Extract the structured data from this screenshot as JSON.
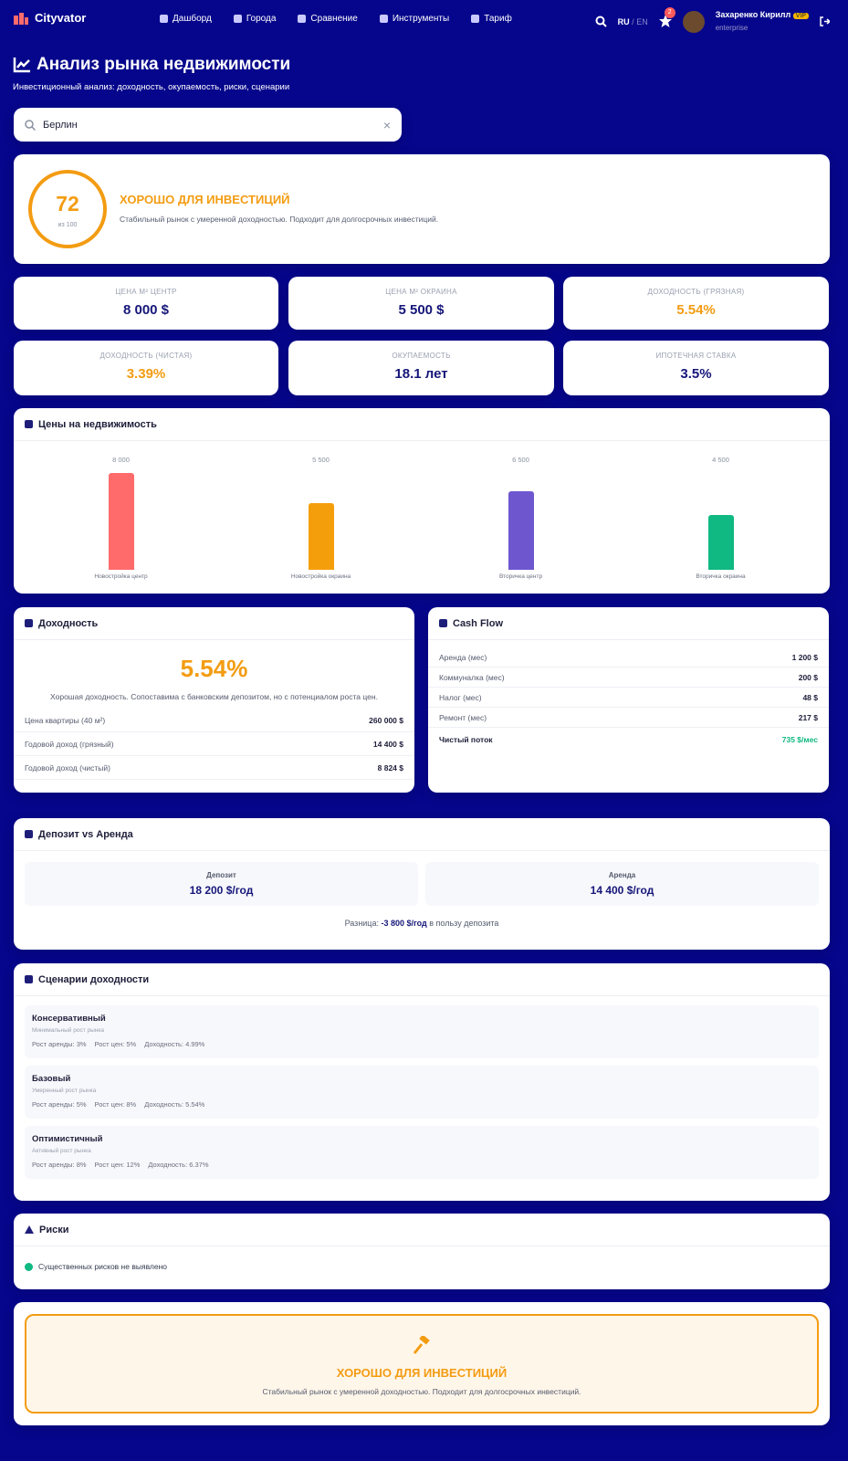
{
  "nav": {
    "brand": "Cityvator",
    "links": [
      "Дашборд",
      "Города",
      "Сравнение",
      "Инструменты",
      "Тариф"
    ],
    "lang_ru": "RU",
    "lang_sep": "/",
    "lang_en": "EN",
    "badge": "2",
    "user_name": "Захаренко Кирилл",
    "user_badge": "VIP",
    "user_plan": "enterprise"
  },
  "header": {
    "title": "Анализ рынка недвижимости",
    "subtitle": "Инвестиционный анализ: доходность, окупаемость, риски, сценарии"
  },
  "search": {
    "value": "Берлин"
  },
  "score": {
    "value": 72,
    "label": "из 100",
    "verdict": "ХОРОШО ДЛЯ ИНВЕСТИЦИЙ",
    "description": "Стабильный рынок с умеренной доходностью. Подходит для долгосрочных инвестиций."
  },
  "metrics": [
    {
      "label": "ЦЕНА М² ЦЕНТР",
      "value": "8 000 $"
    },
    {
      "label": "ЦЕНА М² ОКРАИНА",
      "value": "5 500 $"
    },
    {
      "label": "ДОХОДНОСТЬ (ГРЯЗНАЯ)",
      "value": "5.54%"
    },
    {
      "label": "ДОХОДНОСТЬ (ЧИСТАЯ)",
      "value": "3.39%"
    },
    {
      "label": "ОКУПАЕМОСТЬ",
      "value": "18.1 лет"
    },
    {
      "label": "ИПОТЕЧНАЯ СТАВКА",
      "value": "3.5%"
    }
  ],
  "price_chart": {
    "type": "bar",
    "title": "Цены на недвижимость",
    "categories": [
      "Новостройка центр",
      "Новостройка окраина",
      "Вторичка центр",
      "Вторичка окраина"
    ],
    "values": [
      8000,
      5500,
      6500,
      4500
    ],
    "value_labels": [
      "8 000",
      "5 500",
      "6 500",
      "4 500"
    ],
    "colors": [
      "#ff6b6b",
      "#f59e0b",
      "#6e56cf",
      "#10b981"
    ]
  },
  "yield": {
    "title": "Доходность",
    "value": "5.54%",
    "description": "Хорошая доходность. Сопоставима с банковским депозитом, но с потенциалом роста цен.",
    "rows": [
      [
        "Цена квартиры (40 м²)",
        "260 000 $"
      ],
      [
        "Годовой доход (грязный)",
        "14 400 $"
      ],
      [
        "Годовой доход (чистый)",
        "8 824 $"
      ]
    ]
  },
  "cashflow": {
    "title": "Cash Flow",
    "rows": [
      [
        "Аренда (мес)",
        "1 200 $"
      ],
      [
        "Коммуналка (мес)",
        "200 $"
      ],
      [
        "Налог (мес)",
        "48 $"
      ],
      [
        "Ремонт (мес)",
        "217 $"
      ]
    ],
    "total": [
      "Чистый поток",
      "735 $/мес"
    ]
  },
  "deposit": {
    "title": "Депозит vs Аренда",
    "deposit_label": "Депозит",
    "deposit_value": "18 200 $/год",
    "rent_label": "Аренда",
    "rent_value": "14 400 $/год",
    "diff_prefix": "Разница:",
    "diff_value": "-3 800 $/год",
    "diff_suffix": "в пользу депозита"
  },
  "scenarios": {
    "title": "Сценарии доходности",
    "items": [
      {
        "name": "Консервативный",
        "subtitle": "Минимальный рост рынка",
        "rent_growth": "Рост аренды: 3%",
        "price_growth": "Рост цен: 5%",
        "yield": "Доходность: 4.99%"
      },
      {
        "name": "Базовый",
        "subtitle": "Умеренный рост рынка",
        "rent_growth": "Рост аренды: 5%",
        "price_growth": "Рост цен: 8%",
        "yield": "Доходность: 5.54%"
      },
      {
        "name": "Оптимистичный",
        "subtitle": "Активный рост рынка",
        "rent_growth": "Рост аренды: 8%",
        "price_growth": "Рост цен: 12%",
        "yield": "Доходность: 6.37%"
      }
    ]
  },
  "risks": {
    "title": "Риски",
    "items": [
      "Существенных рисков не выявлено"
    ]
  },
  "verdict": {
    "title": "ХОРОШО ДЛЯ ИНВЕСТИЦИЙ",
    "description": "Стабильный рынок с умеренной доходностью. Подходит для долгосрочных инвестиций."
  }
}
